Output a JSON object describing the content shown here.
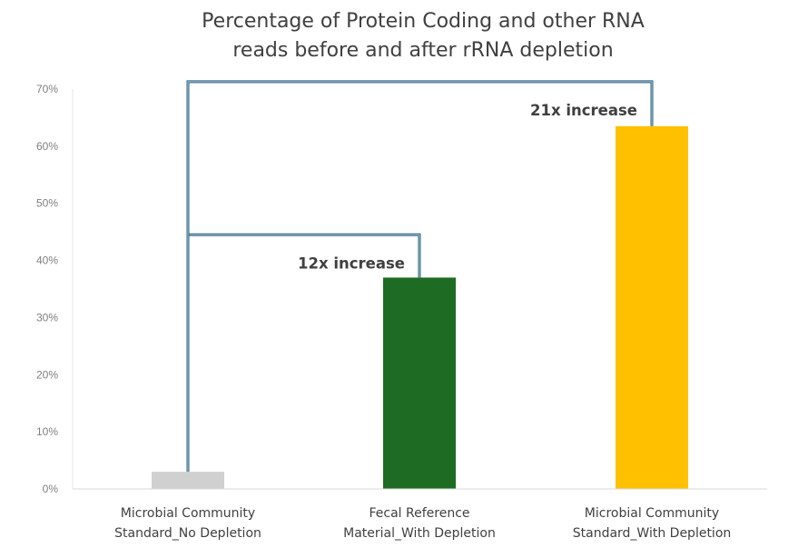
{
  "chart_data": {
    "type": "bar",
    "title_lines": [
      "Percentage of Protein Coding and other RNA",
      "reads before and after rRNA depletion"
    ],
    "categories": [
      [
        "Microbial Community",
        "Standard_No Depletion"
      ],
      [
        "Fecal Reference",
        "Material_With Depletion"
      ],
      [
        "Microbial Community",
        "Standard_With Depletion"
      ]
    ],
    "values": [
      3,
      37,
      63.5
    ],
    "colors": [
      "#d0d0d0",
      "#1e6b23",
      "#ffc000"
    ],
    "ylim": [
      0,
      70
    ],
    "yticks": [
      "0%",
      "10%",
      "20%",
      "30%",
      "40%",
      "50%",
      "60%",
      "70%"
    ],
    "grid": false,
    "annotations": [
      {
        "text": "12x increase",
        "from_category": 0,
        "to_category": 1,
        "bracket_level": 44.5
      },
      {
        "text": "21x increase",
        "from_category": 0,
        "to_category": 2,
        "bracket_level": 71.3
      }
    ],
    "bracket_color": "#3d7aa0"
  }
}
